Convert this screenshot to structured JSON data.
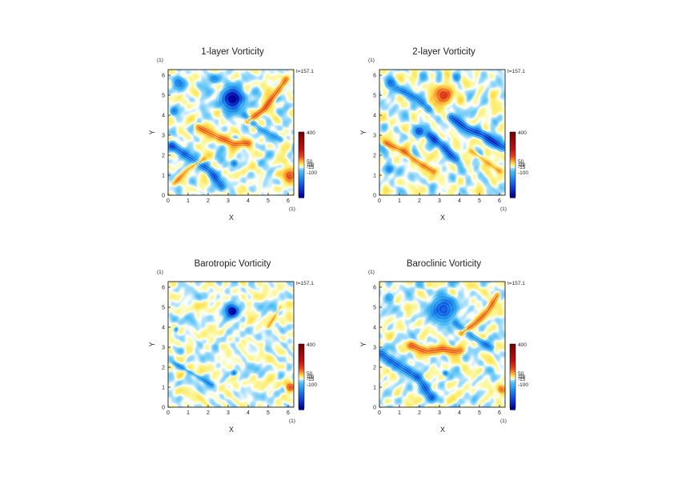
{
  "figure": {
    "time_label": "t=157.1"
  },
  "chart_data": [
    {
      "type": "heatmap",
      "title": "1-layer Vorticity",
      "xlabel": "X",
      "ylabel": "Y",
      "x_unit": "(1)",
      "y_unit": "(1)",
      "xlim": [
        0,
        6.28
      ],
      "ylim": [
        0,
        6.28
      ],
      "x_ticks": [
        "0",
        "1",
        "2",
        "3",
        "4",
        "5",
        "6"
      ],
      "y_ticks": [
        "0",
        "1",
        "2",
        "3",
        "4",
        "5",
        "6"
      ],
      "colorbar": {
        "labels": [
          "400",
          "50",
          "10",
          "-10",
          "-15",
          "-100"
        ],
        "range": [
          -150,
          400
        ]
      },
      "features": [
        {
          "kind": "vortex",
          "sign": "negative",
          "x": 3.2,
          "y": 4.8,
          "r": 0.55,
          "strength": -180
        },
        {
          "kind": "vortex",
          "sign": "negative",
          "x": 0.5,
          "y": 5.6,
          "r": 0.3,
          "strength": -90
        },
        {
          "kind": "vortex",
          "sign": "negative",
          "x": 2.3,
          "y": 5.8,
          "r": 0.25,
          "strength": -80
        },
        {
          "kind": "vortex",
          "sign": "positive",
          "x": 6.1,
          "y": 1.0,
          "r": 0.3,
          "strength": 140
        },
        {
          "kind": "vortex",
          "sign": "negative",
          "x": 3.3,
          "y": 1.6,
          "r": 0.15,
          "strength": -120
        },
        {
          "kind": "vortex",
          "sign": "negative",
          "x": 0.3,
          "y": 4.2,
          "r": 0.2,
          "strength": -90
        },
        {
          "kind": "filament",
          "sign": "positive",
          "points": [
            [
              1.5,
              3.4
            ],
            [
              2.5,
              2.9
            ],
            [
              3.3,
              2.6
            ],
            [
              4.0,
              2.6
            ]
          ],
          "width": 0.18,
          "strength": 130
        },
        {
          "kind": "filament",
          "sign": "positive",
          "points": [
            [
              4.0,
              3.7
            ],
            [
              4.8,
              4.3
            ],
            [
              5.4,
              5.1
            ],
            [
              5.9,
              5.8
            ]
          ],
          "width": 0.15,
          "strength": 140
        },
        {
          "kind": "filament",
          "sign": "negative",
          "points": [
            [
              0.2,
              2.5
            ],
            [
              1.2,
              1.8
            ],
            [
              2.1,
              1.2
            ],
            [
              2.7,
              0.4
            ]
          ],
          "width": 0.2,
          "strength": -110
        },
        {
          "kind": "filament",
          "sign": "negative",
          "points": [
            [
              3.8,
              4.0
            ],
            [
              4.6,
              3.3
            ],
            [
              5.6,
              2.8
            ]
          ],
          "width": 0.15,
          "strength": -70
        },
        {
          "kind": "filament",
          "sign": "positive",
          "points": [
            [
              0.3,
              0.6
            ],
            [
              1.0,
              1.3
            ],
            [
              1.8,
              1.8
            ]
          ],
          "width": 0.12,
          "strength": 90
        }
      ]
    },
    {
      "type": "heatmap",
      "title": "2-layer Vorticity",
      "xlabel": "X",
      "ylabel": "Y",
      "x_unit": "(1)",
      "y_unit": "(1)",
      "xlim": [
        0,
        6.28
      ],
      "ylim": [
        0,
        6.28
      ],
      "x_ticks": [
        "0",
        "1",
        "2",
        "3",
        "4",
        "5",
        "6"
      ],
      "y_ticks": [
        "0",
        "1",
        "2",
        "3",
        "4",
        "5",
        "6"
      ],
      "colorbar": {
        "labels": [
          "400",
          "50",
          "10",
          "-10",
          "-15",
          "-100"
        ],
        "range": [
          -150,
          400
        ]
      },
      "features": [
        {
          "kind": "vortex",
          "sign": "positive",
          "x": 3.2,
          "y": 5.0,
          "r": 0.45,
          "strength": 150
        },
        {
          "kind": "vortex",
          "sign": "negative",
          "x": 2.0,
          "y": 3.2,
          "r": 0.25,
          "strength": -130
        },
        {
          "kind": "vortex",
          "sign": "negative",
          "x": 0.5,
          "y": 1.3,
          "r": 0.2,
          "strength": -90
        },
        {
          "kind": "vortex",
          "sign": "negative",
          "x": 0.6,
          "y": 5.6,
          "r": 0.25,
          "strength": -100
        },
        {
          "kind": "vortex",
          "sign": "negative",
          "x": 3.9,
          "y": 5.9,
          "r": 0.2,
          "strength": -80
        },
        {
          "kind": "filament",
          "sign": "negative",
          "points": [
            [
              3.6,
              3.9
            ],
            [
              4.4,
              3.3
            ],
            [
              5.2,
              3.0
            ],
            [
              6.1,
              2.4
            ]
          ],
          "width": 0.2,
          "strength": -140
        },
        {
          "kind": "filament",
          "sign": "negative",
          "points": [
            [
              0.9,
              5.3
            ],
            [
              1.8,
              4.9
            ],
            [
              2.5,
              4.3
            ]
          ],
          "width": 0.18,
          "strength": -90
        },
        {
          "kind": "filament",
          "sign": "positive",
          "points": [
            [
              0.3,
              2.6
            ],
            [
              1.2,
              2.2
            ],
            [
              2.0,
              1.6
            ],
            [
              2.7,
              1.2
            ]
          ],
          "width": 0.14,
          "strength": 110
        },
        {
          "kind": "filament",
          "sign": "negative",
          "points": [
            [
              2.5,
              3.0
            ],
            [
              3.2,
              2.4
            ],
            [
              3.8,
              1.8
            ]
          ],
          "width": 0.2,
          "strength": -110
        },
        {
          "kind": "filament",
          "sign": "positive",
          "points": [
            [
              4.6,
              2.2
            ],
            [
              5.3,
              1.7
            ],
            [
              6.0,
              1.2
            ]
          ],
          "width": 0.12,
          "strength": 80
        }
      ]
    },
    {
      "type": "heatmap",
      "title": "Barotropic Vorticity",
      "xlabel": "X",
      "ylabel": "Y",
      "x_unit": "(1)",
      "y_unit": "(1)",
      "xlim": [
        0,
        6.28
      ],
      "ylim": [
        0,
        6.28
      ],
      "x_ticks": [
        "0",
        "1",
        "2",
        "3",
        "4",
        "5",
        "6"
      ],
      "y_ticks": [
        "0",
        "1",
        "2",
        "3",
        "4",
        "5",
        "6"
      ],
      "colorbar": {
        "labels": [
          "400",
          "50",
          "10",
          "-10",
          "-15",
          "-100"
        ],
        "range": [
          -150,
          400
        ]
      },
      "features": [
        {
          "kind": "vortex",
          "sign": "negative",
          "x": 3.2,
          "y": 4.8,
          "r": 0.3,
          "strength": -190
        },
        {
          "kind": "vortex",
          "sign": "positive",
          "x": 6.1,
          "y": 1.0,
          "r": 0.22,
          "strength": 150
        },
        {
          "kind": "vortex",
          "sign": "negative",
          "x": 3.3,
          "y": 1.7,
          "r": 0.12,
          "strength": -120
        },
        {
          "kind": "vortex",
          "sign": "negative",
          "x": 0.4,
          "y": 3.9,
          "r": 0.12,
          "strength": -80
        },
        {
          "kind": "filament",
          "sign": "negative",
          "points": [
            [
              0.3,
              2.2
            ],
            [
              1.2,
              1.7
            ],
            [
              2.2,
              1.1
            ]
          ],
          "width": 0.1,
          "strength": -60
        },
        {
          "kind": "filament",
          "sign": "positive",
          "points": [
            [
              5.0,
              4.0
            ],
            [
              5.6,
              5.0
            ]
          ],
          "width": 0.08,
          "strength": 60
        }
      ]
    },
    {
      "type": "heatmap",
      "title": "Baroclinic Vorticity",
      "xlabel": "X",
      "ylabel": "Y",
      "x_unit": "(1)",
      "y_unit": "(1)",
      "xlim": [
        0,
        6.28
      ],
      "ylim": [
        0,
        6.28
      ],
      "x_ticks": [
        "0",
        "1",
        "2",
        "3",
        "4",
        "5",
        "6"
      ],
      "y_ticks": [
        "0",
        "1",
        "2",
        "3",
        "4",
        "5",
        "6"
      ],
      "colorbar": {
        "labels": [
          "400",
          "50",
          "10",
          "-10",
          "-15",
          "-100"
        ],
        "range": [
          -150,
          400
        ]
      },
      "features": [
        {
          "kind": "vortex",
          "sign": "negative",
          "x": 3.2,
          "y": 4.9,
          "r": 0.6,
          "strength": -120
        },
        {
          "kind": "vortex",
          "sign": "positive",
          "x": 6.1,
          "y": 0.9,
          "r": 0.2,
          "strength": 120
        },
        {
          "kind": "vortex",
          "sign": "negative",
          "x": 3.3,
          "y": 1.7,
          "r": 0.12,
          "strength": -100
        },
        {
          "kind": "filament",
          "sign": "positive",
          "points": [
            [
              1.6,
              3.1
            ],
            [
              2.4,
              2.8
            ],
            [
              3.2,
              2.9
            ],
            [
              4.0,
              2.8
            ]
          ],
          "width": 0.2,
          "strength": 130
        },
        {
          "kind": "filament",
          "sign": "positive",
          "points": [
            [
              4.1,
              3.7
            ],
            [
              4.8,
              4.2
            ],
            [
              5.4,
              4.8
            ],
            [
              5.9,
              5.6
            ]
          ],
          "width": 0.14,
          "strength": 130
        },
        {
          "kind": "filament",
          "sign": "negative",
          "points": [
            [
              0.1,
              2.7
            ],
            [
              1.1,
              2.0
            ],
            [
              2.0,
              1.4
            ],
            [
              2.6,
              0.5
            ]
          ],
          "width": 0.22,
          "strength": -110
        },
        {
          "kind": "filament",
          "sign": "negative",
          "points": [
            [
              3.8,
              4.2
            ],
            [
              4.7,
              3.5
            ],
            [
              5.6,
              3.0
            ]
          ],
          "width": 0.16,
          "strength": -80
        },
        {
          "kind": "vortex",
          "sign": "negative",
          "x": 0.5,
          "y": 5.5,
          "r": 0.25,
          "strength": -70
        }
      ]
    }
  ]
}
